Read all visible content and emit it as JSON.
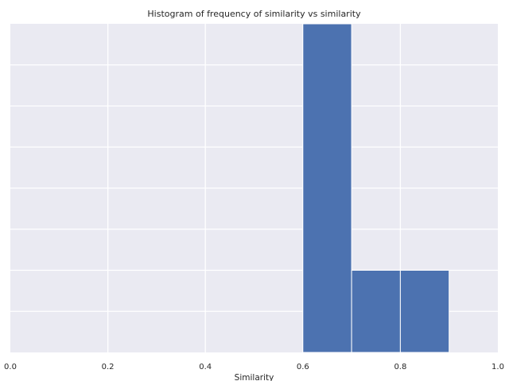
{
  "chart_data": {
    "type": "bar",
    "title": "Histogram of frequency of similarity vs similarity",
    "xlabel": "Similarity",
    "ylabel": "",
    "xlim": [
      0.0,
      1.0
    ],
    "ylim": [
      0,
      8
    ],
    "x_ticks": [
      0.0,
      0.2,
      0.4,
      0.6,
      0.8,
      1.0
    ],
    "x_tick_labels": [
      "0.0",
      "0.2",
      "0.4",
      "0.6",
      "0.8",
      "1.0"
    ],
    "y_tick_values": [
      1,
      2,
      3,
      4,
      5,
      6,
      7
    ],
    "y_tick_labels_shown": false,
    "grid": true,
    "bins": [
      {
        "start": 0.6,
        "end": 0.7,
        "count": 8
      },
      {
        "start": 0.7,
        "end": 0.8,
        "count": 2
      },
      {
        "start": 0.8,
        "end": 0.9,
        "count": 2
      }
    ],
    "colors": {
      "bar": "#4C72B0",
      "plot_background": "#EAEAF2",
      "grid": "#FFFFFF",
      "text": "#262626"
    }
  }
}
